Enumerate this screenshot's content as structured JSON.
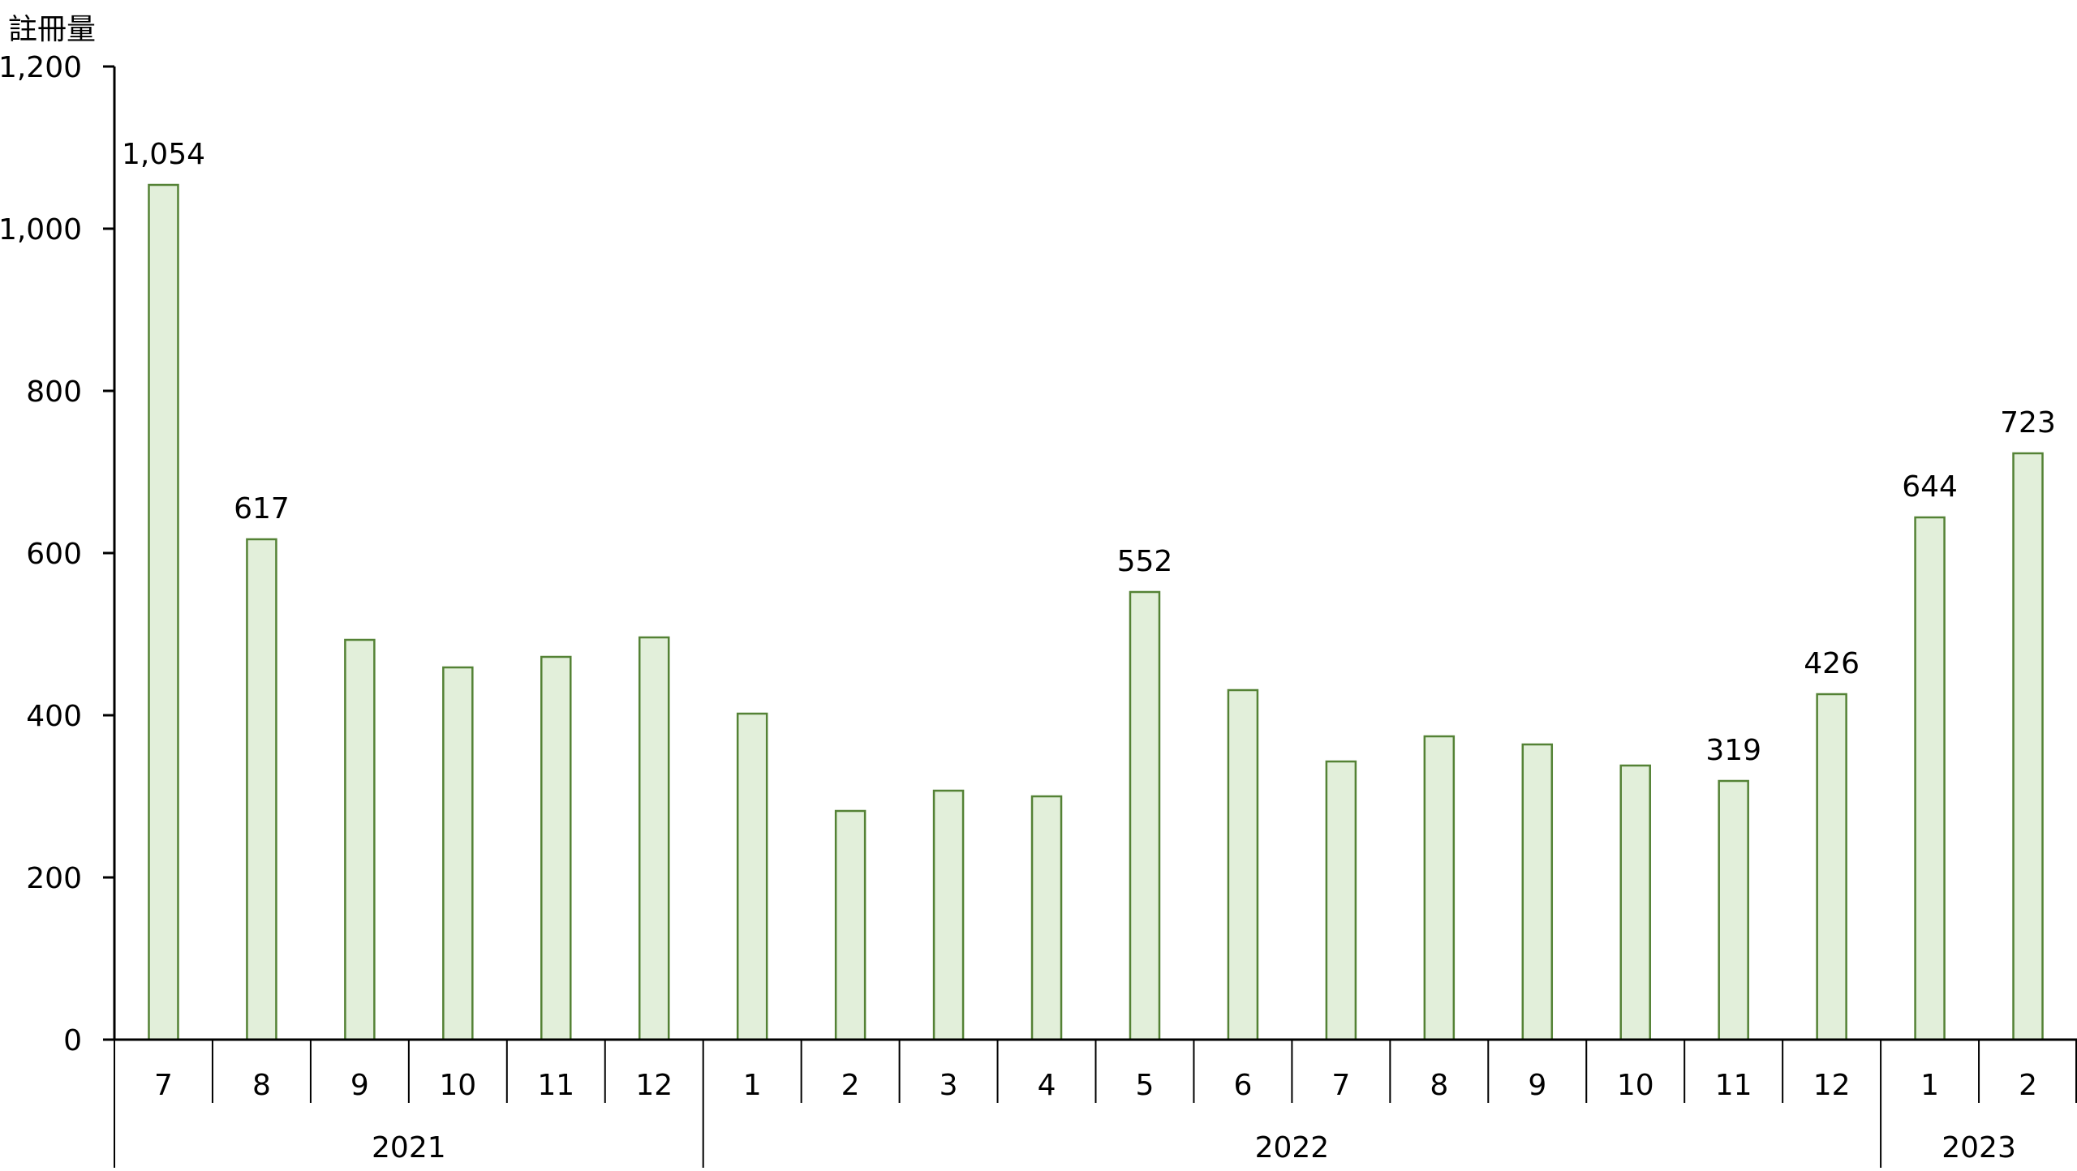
{
  "chart_data": {
    "type": "bar",
    "title": "",
    "ylabel": "註冊量",
    "xlabel": "",
    "ylim": [
      0,
      1200
    ],
    "yticks": [
      "0",
      "200",
      "400",
      "600",
      "800",
      "1,000",
      "1,200"
    ],
    "ytick_values": [
      0,
      200,
      400,
      600,
      800,
      1000,
      1200
    ],
    "grid": false,
    "categories": [
      "7",
      "8",
      "9",
      "10",
      "11",
      "12",
      "1",
      "2",
      "3",
      "4",
      "5",
      "6",
      "7",
      "8",
      "9",
      "10",
      "11",
      "12",
      "1",
      "2"
    ],
    "years": [
      {
        "label": "2021",
        "count": 6
      },
      {
        "label": "2022",
        "count": 12
      },
      {
        "label": "2023",
        "count": 2
      }
    ],
    "values": [
      1054,
      617,
      493,
      459,
      472,
      496,
      402,
      282,
      307,
      300,
      552,
      431,
      343,
      374,
      364,
      338,
      319,
      426,
      644,
      723
    ],
    "data_labels": [
      "1,054",
      "617",
      "",
      "",
      "",
      "",
      "",
      "",
      "",
      "",
      "552",
      "",
      "",
      "",
      "",
      "",
      "319",
      "426",
      "644",
      "723"
    ],
    "colors": {
      "bar_fill": "#e2efda",
      "bar_stroke": "#548235",
      "axis": "#000000"
    }
  }
}
